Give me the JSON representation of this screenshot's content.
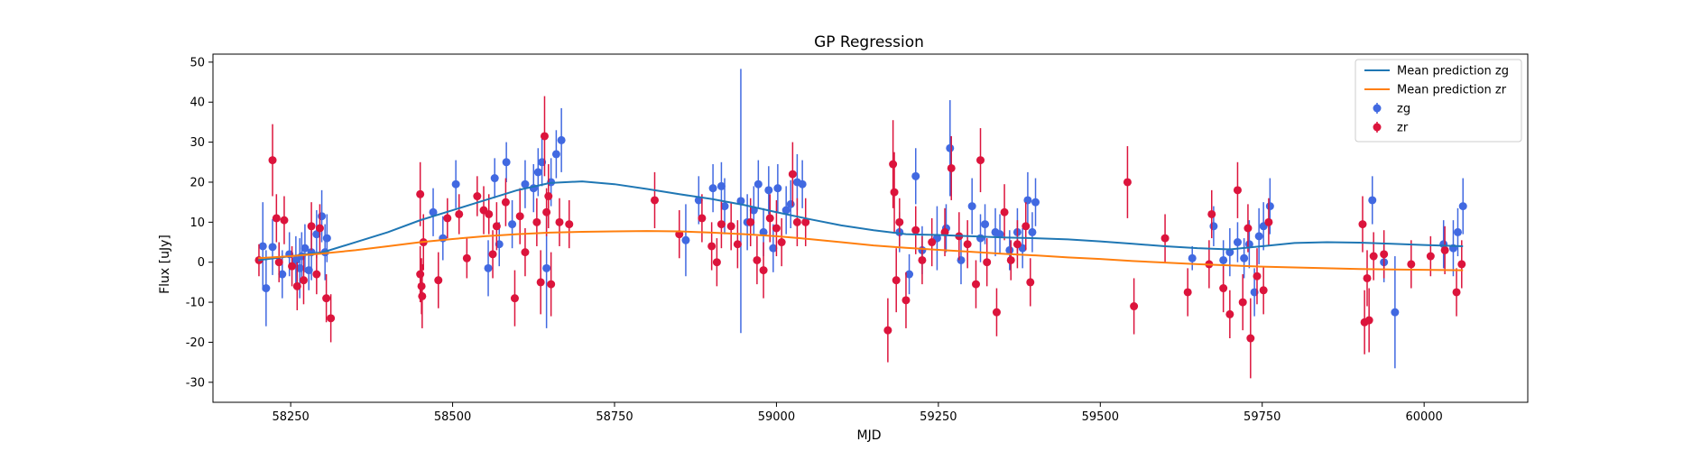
{
  "chart_data": {
    "type": "scatter",
    "title": "GP Regression",
    "xlabel": "MJD",
    "ylabel": "Flux [uJy]",
    "xlim": [
      58130,
      60160
    ],
    "ylim": [
      -35,
      52
    ],
    "xticks": [
      58250,
      58500,
      58750,
      59000,
      59250,
      59500,
      59750,
      60000
    ],
    "yticks": [
      -30,
      -20,
      -10,
      0,
      10,
      20,
      30,
      40,
      50
    ],
    "grid": false,
    "legend_position": "top-right",
    "lines": [
      {
        "name": "Mean prediction zg",
        "color": "#1f77b4",
        "x": [
          58200,
          58250,
          58300,
          58350,
          58400,
          58450,
          58500,
          58550,
          58600,
          58650,
          58700,
          58750,
          58800,
          58850,
          58900,
          58950,
          59000,
          59050,
          59100,
          59150,
          59200,
          59250,
          59300,
          59350,
          59400,
          59450,
          59500,
          59550,
          59600,
          59650,
          59700,
          59750,
          59800,
          59850,
          59900,
          59950,
          60000,
          60060
        ],
        "y": [
          0.5,
          1.5,
          2.5,
          5,
          7.5,
          10.5,
          13,
          15.5,
          18,
          19.8,
          20.2,
          19.5,
          18.3,
          17,
          15.8,
          14.3,
          12.5,
          10.8,
          9.2,
          8,
          7,
          6.8,
          6.5,
          6.2,
          6,
          5.7,
          5.2,
          4.6,
          4,
          3.5,
          3.2,
          4,
          4.8,
          5,
          4.9,
          4.6,
          4.3,
          4
        ]
      },
      {
        "name": "Mean prediction zr",
        "color": "#ff7f0e",
        "x": [
          58200,
          58250,
          58300,
          58350,
          58400,
          58450,
          58500,
          58550,
          58600,
          58650,
          58700,
          58750,
          58800,
          58850,
          58900,
          58950,
          59000,
          59050,
          59100,
          59150,
          59200,
          59250,
          59300,
          59350,
          59400,
          59450,
          59500,
          59550,
          59600,
          59650,
          59700,
          59750,
          59800,
          59850,
          59900,
          59950,
          60000,
          60060
        ],
        "y": [
          1,
          1.5,
          2.2,
          3,
          4,
          5,
          5.8,
          6.5,
          7,
          7.4,
          7.6,
          7.7,
          7.8,
          7.7,
          7.4,
          7,
          6.5,
          5.8,
          5,
          4.2,
          3.6,
          3.1,
          2.6,
          2.1,
          1.7,
          1.2,
          0.8,
          0.3,
          -0.1,
          -0.5,
          -0.8,
          -1.1,
          -1.3,
          -1.5,
          -1.7,
          -1.8,
          -1.9,
          -2
        ]
      }
    ],
    "series": [
      {
        "name": "zg",
        "color": "#4169e1",
        "points": [
          [
            58207,
            4,
            11
          ],
          [
            58212,
            -6.5,
            9.5
          ],
          [
            58222,
            3.8,
            7
          ],
          [
            58237,
            -3,
            6
          ],
          [
            58248,
            2,
            5.5
          ],
          [
            58258,
            0.5,
            6
          ],
          [
            58264,
            -1.5,
            7.5
          ],
          [
            58267,
            1.5,
            6
          ],
          [
            58272,
            3.5,
            6
          ],
          [
            58278,
            -2,
            5
          ],
          [
            58282,
            2.5,
            7
          ],
          [
            58290,
            7,
            6
          ],
          [
            58298,
            11.5,
            6.5
          ],
          [
            58303,
            2.5,
            7
          ],
          [
            58306,
            6,
            6
          ],
          [
            58470,
            12.5,
            6
          ],
          [
            58485,
            6,
            5.5
          ],
          [
            58505,
            19.5,
            6
          ],
          [
            58555,
            -1.5,
            7
          ],
          [
            58565,
            21,
            5
          ],
          [
            58572,
            4.5,
            5.5
          ],
          [
            58583,
            25,
            5
          ],
          [
            58592,
            9.5,
            6
          ],
          [
            58612,
            19.5,
            6
          ],
          [
            58625,
            18.5,
            6
          ],
          [
            58632,
            22.5,
            6
          ],
          [
            58638,
            25,
            6
          ],
          [
            58645,
            -1.5,
            15
          ],
          [
            58652,
            20,
            6
          ],
          [
            58660,
            27,
            6
          ],
          [
            58668,
            30.5,
            8
          ],
          [
            58860,
            5.5,
            9
          ],
          [
            58880,
            15.5,
            6
          ],
          [
            58902,
            18.5,
            6
          ],
          [
            58915,
            19,
            6
          ],
          [
            58920,
            14,
            7
          ],
          [
            58945,
            15.3,
            33
          ],
          [
            58955,
            10,
            7
          ],
          [
            58965,
            13,
            6
          ],
          [
            58972,
            19.5,
            6
          ],
          [
            58980,
            7.5,
            6
          ],
          [
            58988,
            18,
            6
          ],
          [
            58995,
            3.5,
            6
          ],
          [
            59002,
            18.5,
            6
          ],
          [
            59015,
            13,
            6
          ],
          [
            59022,
            14.5,
            6
          ],
          [
            59032,
            20,
            7
          ],
          [
            59040,
            19.5,
            6
          ],
          [
            59190,
            7.5,
            5
          ],
          [
            59205,
            -3,
            5
          ],
          [
            59215,
            21.5,
            7
          ],
          [
            59225,
            3,
            6
          ],
          [
            59248,
            6,
            8
          ],
          [
            59262,
            8.5,
            6
          ],
          [
            59268,
            28.5,
            12
          ],
          [
            59285,
            0.5,
            6
          ],
          [
            59302,
            14,
            7
          ],
          [
            59315,
            6,
            6
          ],
          [
            59322,
            9.5,
            5
          ],
          [
            59338,
            7.5,
            6
          ],
          [
            59345,
            7,
            5
          ],
          [
            59360,
            3,
            5
          ],
          [
            59372,
            7.5,
            6
          ],
          [
            59380,
            3.5,
            5
          ],
          [
            59388,
            15.5,
            7
          ],
          [
            59395,
            7.5,
            5
          ],
          [
            59400,
            15,
            6
          ],
          [
            59642,
            1,
            3
          ],
          [
            59675,
            9,
            5
          ],
          [
            59690,
            0.5,
            5
          ],
          [
            59700,
            2.5,
            6
          ],
          [
            59712,
            5,
            5
          ],
          [
            59722,
            1,
            5
          ],
          [
            59730,
            4.5,
            6
          ],
          [
            59738,
            -7.5,
            6
          ],
          [
            59745,
            6.5,
            7
          ],
          [
            59752,
            9,
            6
          ],
          [
            59762,
            14,
            7
          ],
          [
            59920,
            15.5,
            6
          ],
          [
            59938,
            0,
            5
          ],
          [
            59955,
            -12.5,
            14
          ],
          [
            60030,
            4.5,
            6
          ],
          [
            60045,
            3.5,
            7
          ],
          [
            60052,
            7.5,
            6
          ],
          [
            60060,
            14,
            7
          ]
        ]
      },
      {
        "name": "zr",
        "color": "#dc143c",
        "points": [
          [
            58201,
            0.5,
            4
          ],
          [
            58222,
            25.5,
            9
          ],
          [
            58228,
            11,
            6
          ],
          [
            58232,
            0,
            5
          ],
          [
            58240,
            10.5,
            6
          ],
          [
            58252,
            -1,
            5
          ],
          [
            58260,
            -6,
            6
          ],
          [
            58270,
            -4.5,
            6
          ],
          [
            58282,
            9,
            6
          ],
          [
            58290,
            -3,
            5
          ],
          [
            58295,
            8.5,
            6
          ],
          [
            58305,
            -9,
            6
          ],
          [
            58312,
            -14,
            6
          ],
          [
            58450,
            17,
            8
          ],
          [
            58450,
            -3,
            7
          ],
          [
            58452,
            -6,
            7
          ],
          [
            58453,
            -8.5,
            8
          ],
          [
            58455,
            5,
            7
          ],
          [
            58478,
            -4.5,
            7
          ],
          [
            58492,
            11,
            5
          ],
          [
            58510,
            12,
            5
          ],
          [
            58522,
            1,
            5
          ],
          [
            58538,
            16.5,
            5
          ],
          [
            58548,
            13,
            6
          ],
          [
            58556,
            12,
            5
          ],
          [
            58562,
            2,
            6
          ],
          [
            58568,
            9,
            6
          ],
          [
            58582,
            15,
            6
          ],
          [
            58596,
            -9,
            7
          ],
          [
            58604,
            11.5,
            7
          ],
          [
            58612,
            2.5,
            6
          ],
          [
            58630,
            10,
            6
          ],
          [
            58636,
            -5,
            8
          ],
          [
            58642,
            31.5,
            10
          ],
          [
            58645,
            12.5,
            6
          ],
          [
            58648,
            16.5,
            8
          ],
          [
            58652,
            -5.5,
            8
          ],
          [
            58665,
            10,
            6
          ],
          [
            58680,
            9.5,
            6
          ],
          [
            58812,
            15.5,
            7
          ],
          [
            58850,
            7,
            6
          ],
          [
            58885,
            11,
            6
          ],
          [
            58900,
            4,
            6
          ],
          [
            58908,
            0,
            6
          ],
          [
            58915,
            9.5,
            6
          ],
          [
            58930,
            9,
            6
          ],
          [
            58940,
            4.5,
            6
          ],
          [
            58960,
            10,
            6
          ],
          [
            58970,
            0.5,
            6
          ],
          [
            58980,
            -2,
            7
          ],
          [
            58990,
            11,
            6
          ],
          [
            59000,
            8.5,
            7
          ],
          [
            59008,
            5,
            6
          ],
          [
            59025,
            22,
            8
          ],
          [
            59032,
            10,
            6
          ],
          [
            59045,
            10,
            6
          ],
          [
            59172,
            -17,
            8
          ],
          [
            59180,
            24.5,
            11
          ],
          [
            59182,
            17.5,
            10
          ],
          [
            59185,
            -4.5,
            8
          ],
          [
            59190,
            10,
            6
          ],
          [
            59200,
            -9.5,
            7
          ],
          [
            59215,
            8,
            6
          ],
          [
            59225,
            0.5,
            6
          ],
          [
            59240,
            5,
            6
          ],
          [
            59260,
            7.5,
            6
          ],
          [
            59270,
            23.5,
            8
          ],
          [
            59282,
            6.5,
            6
          ],
          [
            59295,
            4.5,
            6
          ],
          [
            59308,
            -5.5,
            6
          ],
          [
            59315,
            25.5,
            8
          ],
          [
            59325,
            0,
            6
          ],
          [
            59340,
            -12.5,
            6
          ],
          [
            59352,
            12.5,
            7
          ],
          [
            59362,
            0.5,
            5
          ],
          [
            59372,
            4.5,
            6
          ],
          [
            59385,
            9,
            6
          ],
          [
            59392,
            -5,
            6
          ],
          [
            59542,
            20,
            9
          ],
          [
            59552,
            -11,
            7
          ],
          [
            59600,
            6,
            6
          ],
          [
            59635,
            -7.5,
            6
          ],
          [
            59668,
            -0.5,
            6
          ],
          [
            59672,
            12,
            6
          ],
          [
            59690,
            -6.5,
            6
          ],
          [
            59700,
            -13,
            6
          ],
          [
            59712,
            18,
            7
          ],
          [
            59720,
            -10,
            7
          ],
          [
            59728,
            8.5,
            6
          ],
          [
            59732,
            -19,
            10
          ],
          [
            59742,
            -3.5,
            7
          ],
          [
            59752,
            -7,
            6
          ],
          [
            59760,
            10,
            6
          ],
          [
            59905,
            9.5,
            7
          ],
          [
            59908,
            -15,
            8
          ],
          [
            59912,
            -4,
            7
          ],
          [
            59915,
            -14.5,
            8
          ],
          [
            59922,
            1.5,
            6
          ],
          [
            59938,
            2,
            6
          ],
          [
            59980,
            -0.5,
            6
          ],
          [
            60010,
            1.5,
            5
          ],
          [
            60032,
            3,
            6
          ],
          [
            60050,
            -7.5,
            6
          ],
          [
            60058,
            -0.5,
            6
          ]
        ]
      }
    ]
  }
}
